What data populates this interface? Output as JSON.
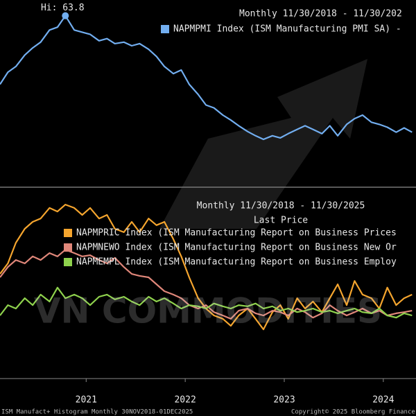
{
  "chart_data": [
    {
      "type": "line",
      "title": "Monthly 11/30/2018 - 11/30/202",
      "annotation": "Hi: 63.8",
      "x": [
        2020.63,
        2020.71,
        2020.79,
        2020.88,
        2020.96,
        2021.04,
        2021.13,
        2021.21,
        2021.29,
        2021.38,
        2021.46,
        2021.54,
        2021.63,
        2021.71,
        2021.79,
        2021.88,
        2021.96,
        2022.04,
        2022.13,
        2022.21,
        2022.29,
        2022.38,
        2022.46,
        2022.54,
        2022.63,
        2022.71,
        2022.79,
        2022.88,
        2022.96,
        2023.04,
        2023.13,
        2023.21,
        2023.29,
        2023.38,
        2023.46,
        2023.54,
        2023.63,
        2023.71,
        2023.79,
        2023.88,
        2023.96,
        2024.04,
        2024.13,
        2024.21,
        2024.29,
        2024.38,
        2024.46,
        2024.54,
        2024.63,
        2024.71,
        2024.79
      ],
      "series": [
        {
          "name": "NAPMPMI Index (ISM Manufacturing PMI SA) -",
          "color": "#72aef0",
          "values": [
            54.2,
            55.9,
            56.7,
            58.3,
            59.3,
            60.1,
            61.8,
            62.2,
            63.8,
            61.8,
            61.5,
            61.2,
            60.3,
            60.6,
            59.9,
            60.1,
            59.6,
            59.9,
            59.1,
            58.1,
            56.7,
            55.7,
            56.2,
            54.2,
            52.8,
            51.3,
            50.9,
            49.9,
            49.2,
            48.4,
            47.6,
            47.0,
            46.5,
            47.0,
            46.7,
            47.3,
            47.9,
            48.4,
            47.9,
            47.3,
            48.4,
            47.0,
            48.6,
            49.4,
            49.9,
            48.9,
            48.6,
            48.2,
            47.5,
            48.1,
            47.5
          ]
        }
      ],
      "xlim": [
        2020.63,
        2024.83
      ],
      "ylim": [
        40,
        66
      ]
    },
    {
      "type": "line",
      "title": "Monthly 11/30/2018 - 11/30/2025",
      "subtitle": "Last Price",
      "x": [
        2020.63,
        2020.71,
        2020.79,
        2020.88,
        2020.96,
        2021.04,
        2021.13,
        2021.21,
        2021.29,
        2021.38,
        2021.46,
        2021.54,
        2021.63,
        2021.71,
        2021.79,
        2021.88,
        2021.96,
        2022.04,
        2022.13,
        2022.21,
        2022.29,
        2022.38,
        2022.46,
        2022.54,
        2022.63,
        2022.71,
        2022.79,
        2022.88,
        2022.96,
        2023.04,
        2023.13,
        2023.21,
        2023.29,
        2023.38,
        2023.46,
        2023.54,
        2023.63,
        2023.71,
        2023.79,
        2023.88,
        2023.96,
        2024.04,
        2024.13,
        2024.21,
        2024.29,
        2024.38,
        2024.46,
        2024.54,
        2024.63,
        2024.71,
        2024.79
      ],
      "series": [
        {
          "name": "NAPMPRIC Index (ISM Manufacturing Report on Business Prices",
          "color": "#f5a52e",
          "values": [
            63.3,
            67.7,
            76.3,
            82.1,
            85.0,
            86.4,
            90.8,
            89.3,
            92.2,
            90.8,
            87.9,
            90.8,
            86.4,
            87.9,
            82.1,
            80.7,
            85.0,
            80.7,
            86.4,
            83.6,
            85.0,
            77.8,
            70.6,
            61.9,
            53.2,
            48.9,
            46.0,
            44.6,
            41.7,
            46.0,
            48.9,
            44.6,
            40.2,
            47.4,
            50.3,
            44.6,
            53.2,
            48.9,
            51.8,
            47.4,
            53.2,
            59.0,
            50.3,
            60.4,
            54.7,
            53.2,
            48.9,
            57.6,
            50.3,
            53.2,
            54.7
          ]
        },
        {
          "name": "NAPMNEWO Index (ISM Manufacturing Report on Business New Or",
          "color": "#e0877a",
          "values": [
            61.9,
            66.2,
            69.1,
            67.7,
            70.6,
            69.1,
            72.0,
            70.6,
            73.4,
            72.0,
            70.6,
            71.1,
            69.1,
            67.7,
            70.0,
            66.2,
            63.3,
            62.5,
            61.9,
            59.0,
            56.1,
            54.7,
            53.2,
            50.3,
            48.9,
            50.3,
            47.4,
            46.0,
            44.6,
            48.0,
            48.9,
            46.9,
            46.0,
            48.0,
            47.4,
            46.0,
            48.9,
            47.4,
            45.1,
            46.9,
            50.3,
            48.0,
            46.0,
            47.4,
            48.9,
            46.9,
            48.0,
            46.0,
            46.9,
            47.4,
            48.0
          ]
        },
        {
          "name": "NAPMEMPL Index (ISM Manufacturing Report on Business Employ",
          "color": "#8fd24d",
          "values": [
            46.0,
            50.3,
            48.9,
            53.2,
            50.3,
            54.7,
            51.8,
            57.6,
            53.2,
            54.7,
            53.2,
            50.3,
            53.8,
            54.7,
            52.7,
            53.8,
            51.8,
            50.3,
            53.8,
            51.8,
            53.2,
            51.0,
            48.9,
            50.3,
            49.8,
            48.9,
            51.0,
            49.8,
            48.9,
            50.3,
            49.8,
            51.0,
            48.9,
            49.8,
            48.0,
            48.9,
            47.4,
            48.0,
            48.9,
            47.4,
            48.0,
            46.9,
            48.0,
            48.9,
            47.4,
            46.9,
            48.9,
            46.0,
            45.1,
            46.9,
            46.0
          ]
        }
      ],
      "xlim": [
        2020.63,
        2024.83
      ],
      "ylim": [
        20,
        98
      ],
      "xticks": [
        {
          "value": 2021.5,
          "label": "2021"
        },
        {
          "value": 2022.5,
          "label": "2022"
        },
        {
          "value": 2023.5,
          "label": "2023"
        },
        {
          "value": 2024.5,
          "label": "2024"
        }
      ]
    }
  ],
  "watermark": "VN COMMODITIES",
  "footer": {
    "left": "ISM Manufact+ Histogram Monthly 30NOV2018-01DEC2025",
    "right": "Copyright© 2025 Bloomberg Finance"
  }
}
